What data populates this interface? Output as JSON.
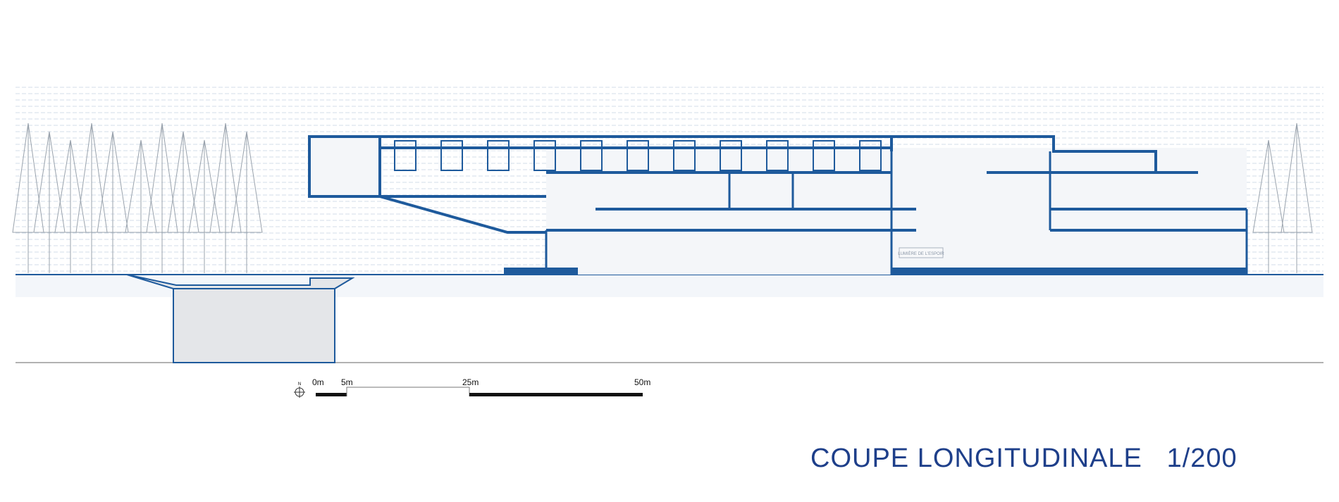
{
  "drawing": {
    "title": "COUPE LONGITUDINALE",
    "scale": "1/200",
    "sign_text": "LUMIÈRE DE L'ESPOIR",
    "north_label": "N",
    "scale_bar": {
      "labels": [
        "0m",
        "5m",
        "25m",
        "50m"
      ]
    },
    "colors": {
      "structure": "#1e5a9c",
      "title": "#1e3f8a",
      "hatch": "#c9d6e6",
      "trees": "#9aa3ad"
    }
  }
}
